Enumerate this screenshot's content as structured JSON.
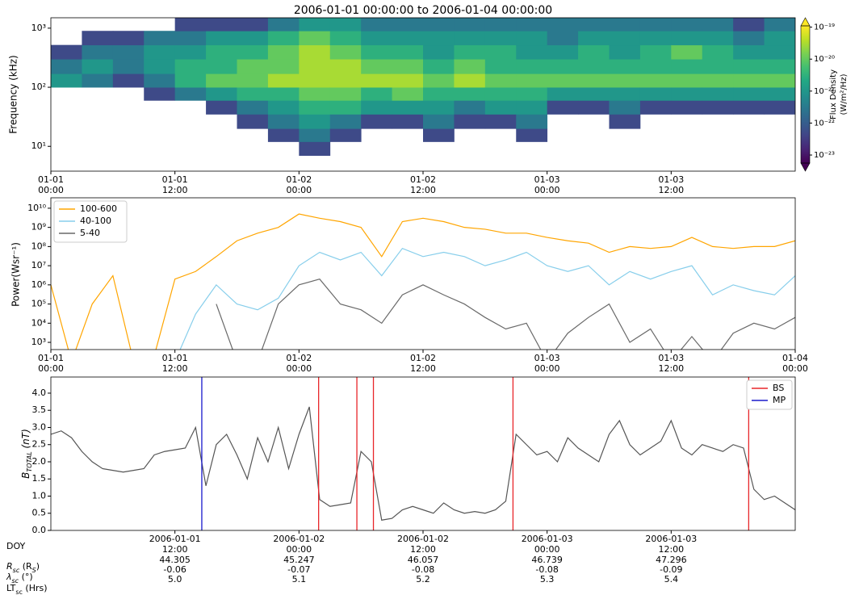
{
  "chart_data": [
    {
      "type": "heatmap",
      "title": "2006-01-01 00:00:00 to 2006-01-04 00:00:00",
      "ylabel": "Frequency (kHz)",
      "y_log": true,
      "x_edges": [
        "2006-01-01 00:00",
        "2006-01-01 03:00",
        "2006-01-01 06:00",
        "2006-01-01 09:00",
        "2006-01-01 12:00",
        "2006-01-01 15:00",
        "2006-01-01 18:00",
        "2006-01-01 21:00",
        "2006-01-02 00:00",
        "2006-01-02 03:00",
        "2006-01-02 06:00",
        "2006-01-02 09:00",
        "2006-01-02 12:00",
        "2006-01-02 15:00",
        "2006-01-02 18:00",
        "2006-01-02 21:00",
        "2006-01-03 00:00",
        "2006-01-03 03:00",
        "2006-01-03 06:00",
        "2006-01-03 09:00",
        "2006-01-03 12:00",
        "2006-01-03 15:00",
        "2006-01-03 18:00",
        "2006-01-03 21:00",
        "2006-01-04 00:00"
      ],
      "y_edges": [
        4,
        7,
        12,
        20,
        35,
        60,
        100,
        170,
        300,
        520,
        900,
        1500
      ],
      "values": [
        [
          null,
          null,
          null,
          null,
          null,
          null,
          1e-21,
          3e-22,
          5e-23,
          null,
          null
        ],
        [
          null,
          null,
          null,
          null,
          null,
          null,
          3e-22,
          1e-21,
          3e-22,
          5e-23,
          null
        ],
        [
          null,
          null,
          null,
          null,
          null,
          null,
          5e-23,
          3e-22,
          3e-22,
          5e-23,
          null
        ],
        [
          null,
          null,
          null,
          null,
          null,
          5e-23,
          3e-22,
          1e-21,
          1e-21,
          3e-22,
          null
        ],
        [
          null,
          null,
          null,
          null,
          null,
          3e-22,
          3e-21,
          3e-21,
          1e-21,
          3e-22,
          5e-23
        ],
        [
          null,
          null,
          null,
          null,
          5e-23,
          1e-21,
          1e-20,
          3e-21,
          3e-21,
          1e-21,
          5e-23
        ],
        [
          null,
          null,
          null,
          5e-23,
          3e-22,
          3e-21,
          1e-20,
          1e-20,
          3e-21,
          1e-21,
          5e-23
        ],
        [
          null,
          null,
          5e-23,
          3e-22,
          1e-21,
          3e-21,
          3e-20,
          1e-20,
          1e-20,
          3e-21,
          3e-22
        ],
        [
          null,
          5e-23,
          3e-22,
          1e-21,
          3e-21,
          1e-20,
          3e-20,
          3e-20,
          3e-20,
          1e-20,
          1e-21
        ],
        [
          null,
          null,
          5e-23,
          3e-22,
          3e-21,
          1e-20,
          3e-20,
          3e-20,
          1e-20,
          3e-21,
          1e-21
        ],
        [
          null,
          null,
          null,
          5e-23,
          1e-21,
          3e-21,
          3e-20,
          1e-20,
          3e-21,
          1e-21,
          3e-22
        ],
        [
          null,
          null,
          null,
          5e-23,
          1e-21,
          1e-20,
          3e-20,
          1e-20,
          3e-21,
          1e-21,
          3e-22
        ],
        [
          null,
          null,
          5e-23,
          3e-22,
          1e-21,
          3e-21,
          1e-20,
          3e-21,
          1e-21,
          1e-21,
          3e-22
        ],
        [
          null,
          null,
          null,
          5e-23,
          3e-22,
          3e-21,
          3e-20,
          1e-20,
          3e-21,
          1e-21,
          3e-22
        ],
        [
          null,
          null,
          null,
          5e-23,
          1e-21,
          3e-21,
          1e-20,
          3e-21,
          3e-21,
          1e-21,
          3e-22
        ],
        [
          null,
          null,
          5e-23,
          3e-22,
          1e-21,
          3e-21,
          1e-20,
          3e-21,
          1e-21,
          1e-21,
          3e-22
        ],
        [
          null,
          null,
          null,
          null,
          5e-23,
          1e-21,
          1e-20,
          3e-21,
          1e-21,
          3e-22,
          3e-22
        ],
        [
          null,
          null,
          null,
          null,
          5e-23,
          1e-21,
          1e-20,
          3e-21,
          3e-21,
          1e-21,
          3e-22
        ],
        [
          null,
          null,
          null,
          5e-23,
          3e-22,
          1e-21,
          1e-20,
          3e-21,
          1e-21,
          1e-21,
          3e-22
        ],
        [
          null,
          null,
          null,
          null,
          5e-23,
          1e-21,
          1e-20,
          3e-21,
          3e-21,
          1e-21,
          3e-22
        ],
        [
          null,
          null,
          null,
          null,
          5e-23,
          1e-21,
          1e-20,
          3e-21,
          1e-20,
          1e-21,
          3e-22
        ],
        [
          null,
          null,
          null,
          null,
          5e-23,
          1e-21,
          1e-20,
          3e-21,
          3e-21,
          1e-21,
          3e-22
        ],
        [
          null,
          null,
          null,
          null,
          5e-23,
          1e-21,
          1e-20,
          3e-21,
          1e-21,
          3e-22,
          5e-23
        ],
        [
          null,
          null,
          null,
          null,
          5e-23,
          1e-21,
          1e-20,
          3e-21,
          1e-21,
          1e-21,
          3e-22
        ]
      ],
      "xlim": [
        "2006-01-01 00:00",
        "2006-01-04 00:00"
      ],
      "ylim": [
        3.8,
        1500
      ],
      "xticks": [
        {
          "value": "2006-01-01 00:00",
          "label": "01-01\n00:00"
        },
        {
          "value": "2006-01-01 12:00",
          "label": "01-01\n12:00"
        },
        {
          "value": "2006-01-02 00:00",
          "label": "01-02\n00:00"
        },
        {
          "value": "2006-01-02 12:00",
          "label": "01-02\n12:00"
        },
        {
          "value": "2006-01-03 00:00",
          "label": "01-03\n00:00"
        },
        {
          "value": "2006-01-03 12:00",
          "label": "01-03\n12:00"
        }
      ],
      "yticks": [
        {
          "value": 10,
          "label": "10¹"
        },
        {
          "value": 100,
          "label": "10²"
        },
        {
          "value": 1000,
          "label": "10³"
        }
      ],
      "colorbar": {
        "label": [
          "Flux Density",
          "(W/m²/Hz)"
        ],
        "colormap": "viridis",
        "log": true,
        "clim": [
          5.6e-24,
          1.1e-19
        ],
        "ticks": [
          {
            "value": 1e-19,
            "label": "10⁻¹⁹"
          },
          {
            "value": 1e-20,
            "label": "10⁻²⁰"
          },
          {
            "value": 1e-21,
            "label": "10⁻²¹"
          },
          {
            "value": 1e-22,
            "label": "10⁻²²"
          },
          {
            "value": 1e-23,
            "label": "10⁻²³"
          }
        ]
      }
    },
    {
      "type": "line",
      "ylabel": "Power(Wsr⁻¹)",
      "y_log": true,
      "legend": "upper left",
      "x": [
        "2006-01-01 00:00",
        "2006-01-01 02:00",
        "2006-01-01 04:00",
        "2006-01-01 06:00",
        "2006-01-01 08:00",
        "2006-01-01 10:00",
        "2006-01-01 12:00",
        "2006-01-01 14:00",
        "2006-01-01 16:00",
        "2006-01-01 18:00",
        "2006-01-01 20:00",
        "2006-01-01 22:00",
        "2006-01-02 00:00",
        "2006-01-02 02:00",
        "2006-01-02 04:00",
        "2006-01-02 06:00",
        "2006-01-02 08:00",
        "2006-01-02 10:00",
        "2006-01-02 12:00",
        "2006-01-02 14:00",
        "2006-01-02 16:00",
        "2006-01-02 18:00",
        "2006-01-02 20:00",
        "2006-01-02 22:00",
        "2006-01-03 00:00",
        "2006-01-03 02:00",
        "2006-01-03 04:00",
        "2006-01-03 06:00",
        "2006-01-03 08:00",
        "2006-01-03 10:00",
        "2006-01-03 12:00",
        "2006-01-03 14:00",
        "2006-01-03 16:00",
        "2006-01-03 18:00",
        "2006-01-03 20:00",
        "2006-01-03 22:00",
        "2006-01-04 00:00"
      ],
      "series": [
        {
          "name": "100-600",
          "color": "#ffa500",
          "values": [
            1000000.0,
            100,
            100000.0,
            3000000.0,
            100,
            200,
            2000000.0,
            5000000.0,
            30000000.0,
            200000000.0,
            500000000.0,
            1000000000.0,
            5000000000.0,
            3000000000.0,
            2000000000.0,
            1000000000.0,
            30000000.0,
            2000000000.0,
            3000000000.0,
            2000000000.0,
            1000000000.0,
            800000000.0,
            500000000.0,
            500000000.0,
            300000000.0,
            200000000.0,
            150000000.0,
            50000000.0,
            100000000.0,
            80000000.0,
            100000000.0,
            300000000.0,
            100000000.0,
            80000000.0,
            100000000.0,
            100000000.0,
            200000000.0
          ]
        },
        {
          "name": "40-100",
          "color": "#87ceeb",
          "values": [
            null,
            null,
            null,
            null,
            null,
            null,
            100,
            30000.0,
            1000000.0,
            100000.0,
            50000.0,
            200000.0,
            10000000.0,
            50000000.0,
            20000000.0,
            50000000.0,
            3000000.0,
            80000000.0,
            30000000.0,
            50000000.0,
            30000000.0,
            10000000.0,
            20000000.0,
            50000000.0,
            10000000.0,
            5000000.0,
            10000000.0,
            1000000.0,
            5000000.0,
            2000000.0,
            5000000.0,
            10000000.0,
            300000.0,
            1000000.0,
            500000.0,
            300000.0,
            3000000.0
          ]
        },
        {
          "name": "5-40",
          "color": "#696969",
          "values": [
            null,
            null,
            null,
            null,
            null,
            null,
            null,
            null,
            100000.0,
            100,
            100,
            100000.0,
            1000000.0,
            2000000.0,
            100000.0,
            50000.0,
            10000.0,
            300000.0,
            1000000.0,
            300000.0,
            100000.0,
            20000.0,
            5000.0,
            10000.0,
            100,
            3000.0,
            20000.0,
            100000.0,
            1000.0,
            5000.0,
            100,
            2000.0,
            100,
            3000.0,
            10000.0,
            5000.0,
            20000.0
          ]
        }
      ],
      "xlim": [
        "2006-01-01 00:00",
        "2006-01-04 00:00"
      ],
      "ylim": [
        420,
        35000000000.0
      ],
      "xticks": [
        {
          "value": "2006-01-01 00:00",
          "label": "01-01\n00:00"
        },
        {
          "value": "2006-01-01 12:00",
          "label": "01-01\n12:00"
        },
        {
          "value": "2006-01-02 00:00",
          "label": "01-02\n00:00"
        },
        {
          "value": "2006-01-02 12:00",
          "label": "01-02\n12:00"
        },
        {
          "value": "2006-01-03 00:00",
          "label": "01-03\n00:00"
        },
        {
          "value": "2006-01-03 12:00",
          "label": "01-03\n12:00"
        },
        {
          "value": "2006-01-04 00:00",
          "label": "01-04\n00:00"
        }
      ],
      "yticks": [
        {
          "value": 1000,
          "label": "10³"
        },
        {
          "value": 10000,
          "label": "10⁴"
        },
        {
          "value": 100000,
          "label": "10⁵"
        },
        {
          "value": 1000000,
          "label": "10⁶"
        },
        {
          "value": 10000000,
          "label": "10⁷"
        },
        {
          "value": 100000000,
          "label": "10⁸"
        },
        {
          "value": 1000000000,
          "label": "10⁹"
        },
        {
          "value": 10000000000,
          "label": "10¹⁰"
        }
      ]
    },
    {
      "type": "line",
      "ylabel": [
        "B",
        "TOTAL",
        " (nT)"
      ],
      "y_log": false,
      "legend": "upper right",
      "x": [
        "2006-01-01 00:00",
        "2006-01-01 01:00",
        "2006-01-01 02:00",
        "2006-01-01 03:00",
        "2006-01-01 04:00",
        "2006-01-01 05:00",
        "2006-01-01 06:00",
        "2006-01-01 07:00",
        "2006-01-01 08:00",
        "2006-01-01 09:00",
        "2006-01-01 10:00",
        "2006-01-01 11:00",
        "2006-01-01 12:00",
        "2006-01-01 13:00",
        "2006-01-01 14:00",
        "2006-01-01 15:00",
        "2006-01-01 16:00",
        "2006-01-01 17:00",
        "2006-01-01 18:00",
        "2006-01-01 19:00",
        "2006-01-01 20:00",
        "2006-01-01 21:00",
        "2006-01-01 22:00",
        "2006-01-01 23:00",
        "2006-01-02 00:00",
        "2006-01-02 01:00",
        "2006-01-02 02:00",
        "2006-01-02 03:00",
        "2006-01-02 04:00",
        "2006-01-02 05:00",
        "2006-01-02 06:00",
        "2006-01-02 07:00",
        "2006-01-02 08:00",
        "2006-01-02 09:00",
        "2006-01-02 10:00",
        "2006-01-02 11:00",
        "2006-01-02 12:00",
        "2006-01-02 13:00",
        "2006-01-02 14:00",
        "2006-01-02 15:00",
        "2006-01-02 16:00",
        "2006-01-02 17:00",
        "2006-01-02 18:00",
        "2006-01-02 19:00",
        "2006-01-02 20:00",
        "2006-01-02 21:00",
        "2006-01-02 22:00",
        "2006-01-02 23:00",
        "2006-01-03 00:00",
        "2006-01-03 01:00",
        "2006-01-03 02:00",
        "2006-01-03 03:00",
        "2006-01-03 04:00",
        "2006-01-03 05:00",
        "2006-01-03 06:00",
        "2006-01-03 07:00",
        "2006-01-03 08:00",
        "2006-01-03 09:00",
        "2006-01-03 10:00",
        "2006-01-03 11:00",
        "2006-01-03 12:00",
        "2006-01-03 13:00",
        "2006-01-03 14:00",
        "2006-01-03 15:00",
        "2006-01-03 16:00",
        "2006-01-03 17:00",
        "2006-01-03 18:00",
        "2006-01-03 19:00",
        "2006-01-03 20:00",
        "2006-01-03 21:00",
        "2006-01-03 22:00",
        "2006-01-03 23:00",
        "2006-01-04 00:00"
      ],
      "series": [
        {
          "color": "#555555",
          "values": [
            2.8,
            2.9,
            2.7,
            2.3,
            2.0,
            1.8,
            1.75,
            1.7,
            1.75,
            1.8,
            2.2,
            2.3,
            2.35,
            2.4,
            3.0,
            1.3,
            2.5,
            2.8,
            2.2,
            1.5,
            2.7,
            2.0,
            3.0,
            1.8,
            2.8,
            3.6,
            0.9,
            0.7,
            0.75,
            0.8,
            2.3,
            2.0,
            0.3,
            0.35,
            0.6,
            0.7,
            0.6,
            0.5,
            0.8,
            0.6,
            0.5,
            0.55,
            0.5,
            0.6,
            0.85,
            2.8,
            2.5,
            2.2,
            2.3,
            2.0,
            2.7,
            2.4,
            2.2,
            2.0,
            2.8,
            3.2,
            2.5,
            2.2,
            2.4,
            2.6,
            3.2,
            2.4,
            2.2,
            2.5,
            2.4,
            2.3,
            2.5,
            2.4,
            1.2,
            0.9,
            1.0,
            0.8,
            0.6
          ]
        }
      ],
      "vlines": [
        {
          "name": "BS",
          "color": "#e8262a",
          "x": [
            "2006-01-02 01:54",
            "2006-01-02 05:36",
            "2006-01-02 07:12",
            "2006-01-02 20:42",
            "2006-01-03 19:30"
          ]
        },
        {
          "name": "MP",
          "color": "#1a1acc",
          "x": [
            "2006-01-01 14:36"
          ]
        }
      ],
      "xlim": [
        "2006-01-01 00:00",
        "2006-01-04 00:00"
      ],
      "ylim": [
        0,
        4.47
      ],
      "xticks": [
        {
          "value": "2006-01-01 12:00",
          "label": "2006-01-01\n12:00"
        },
        {
          "value": "2006-01-02 00:00",
          "label": "2006-01-02\n00:00"
        },
        {
          "value": "2006-01-02 12:00",
          "label": "2006-01-02\n12:00"
        },
        {
          "value": "2006-01-03 00:00",
          "label": "2006-01-03\n00:00"
        },
        {
          "value": "2006-01-03 12:00",
          "label": "2006-01-03\n12:00"
        }
      ],
      "yticks": [
        {
          "value": 0,
          "label": "0.0"
        },
        0.5,
        {
          "value": 1,
          "label": "1.0"
        },
        1.5,
        {
          "value": 2,
          "label": "2.0"
        },
        2.5,
        {
          "value": 3,
          "label": "3.0"
        },
        3.5,
        {
          "value": 4,
          "label": "4.0"
        }
      ],
      "ephemeris": {
        "labels": [
          "DOY",
          [
            "R",
            "sc",
            " (R",
            "S",
            ")"
          ],
          [
            "λ",
            "sc",
            " (°)"
          ],
          [
            "LT",
            "sc",
            " (Hrs)"
          ]
        ],
        "rows": [
          [
            "44.305",
            "45.247",
            "46.057",
            "46.739",
            "47.296"
          ],
          [
            "-0.06",
            "-0.07",
            "-0.08",
            "-0.08",
            "-0.09"
          ],
          [
            "5.0",
            "5.1",
            "5.2",
            "5.3",
            "5.4"
          ]
        ]
      }
    }
  ]
}
